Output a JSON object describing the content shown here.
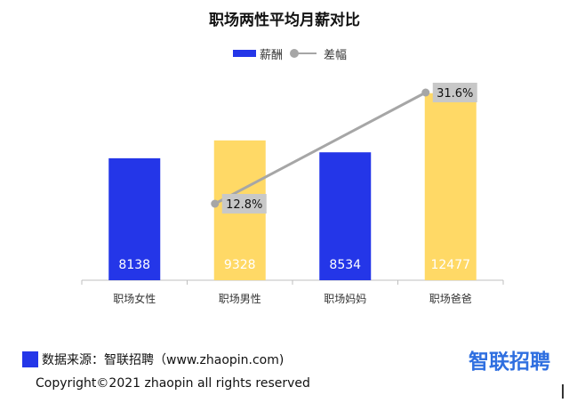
{
  "chart_data": {
    "type": "bar",
    "title": "职场两性平均月薪对比",
    "categories": [
      "职场女性",
      "职场男性",
      "职场妈妈",
      "职场爸爸"
    ],
    "series": [
      {
        "name": "薪酬",
        "type": "bar",
        "values": [
          8138,
          9328,
          8534,
          12477
        ],
        "colors": [
          "#2436e8",
          "#ffd966",
          "#2436e8",
          "#ffd966"
        ]
      },
      {
        "name": "差幅",
        "type": "line",
        "points": [
          {
            "category": "职场男性",
            "value": 12.8,
            "label": "12.8%"
          },
          {
            "category": "职场爸爸",
            "value": 31.6,
            "label": "31.6%"
          }
        ],
        "color": "#a6a6a6"
      }
    ],
    "legend_position": "top-center",
    "grid": false
  },
  "legend": {
    "bar_label": "薪酬",
    "line_label": "差幅",
    "bar_color": "#2436e8",
    "line_color": "#a6a6a6"
  },
  "footer": {
    "source": "数据来源：智联招聘（www.zhaopin.com)",
    "logo_text": "智联招聘",
    "copyright": "Copyright©2021 zhaopin all rights reserved"
  }
}
